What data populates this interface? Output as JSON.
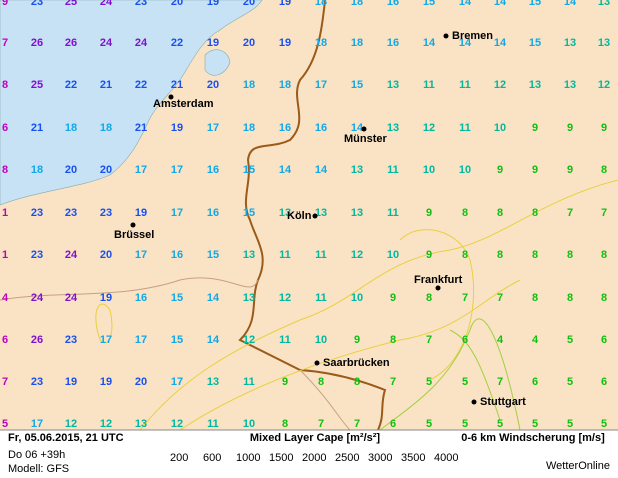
{
  "grid_values": [
    [
      9,
      23,
      25,
      24,
      23,
      20,
      19,
      20,
      19,
      18,
      18,
      16,
      15,
      14,
      14,
      15,
      14,
      13
    ],
    [
      7,
      26,
      26,
      24,
      24,
      22,
      19,
      20,
      19,
      18,
      18,
      16,
      14,
      14,
      14,
      15,
      13,
      13
    ],
    [
      8,
      25,
      22,
      21,
      22,
      21,
      20,
      18,
      18,
      17,
      15,
      13,
      11,
      11,
      12,
      13,
      13,
      12
    ],
    [
      6,
      21,
      18,
      18,
      21,
      19,
      17,
      18,
      16,
      16,
      14,
      13,
      12,
      11,
      10,
      9,
      9,
      9
    ],
    [
      8,
      18,
      20,
      20,
      17,
      17,
      16,
      15,
      14,
      14,
      13,
      11,
      10,
      10,
      9,
      9,
      9,
      8
    ],
    [
      1,
      23,
      23,
      23,
      19,
      17,
      16,
      15,
      13,
      13,
      13,
      11,
      9,
      8,
      8,
      8,
      7,
      7
    ],
    [
      1,
      23,
      24,
      20,
      17,
      16,
      15,
      13,
      11,
      11,
      12,
      10,
      9,
      8,
      8,
      8,
      8,
      8
    ],
    [
      4,
      24,
      24,
      19,
      16,
      15,
      14,
      13,
      12,
      11,
      10,
      9,
      8,
      7,
      7,
      8,
      8,
      8
    ],
    [
      6,
      26,
      23,
      17,
      17,
      15,
      14,
      12,
      11,
      10,
      9,
      8,
      7,
      6,
      4,
      4,
      5,
      6
    ],
    [
      7,
      23,
      19,
      19,
      20,
      17,
      13,
      11,
      9,
      8,
      8,
      7,
      5,
      5,
      7,
      6,
      5,
      6
    ],
    [
      5,
      17,
      12,
      12,
      13,
      12,
      11,
      10,
      8,
      7,
      7,
      6,
      5,
      5,
      5,
      5,
      5,
      5
    ]
  ],
  "value_colors": [
    {
      "max": 9,
      "color": "#10c010"
    },
    {
      "max": 13,
      "color": "#00b8a0"
    },
    {
      "max": 18,
      "color": "#10a8e8"
    },
    {
      "max": 23,
      "color": "#1850f0"
    },
    {
      "max": 30,
      "color": "#8010d0"
    }
  ],
  "edge_color": "#c000c0",
  "cities": [
    "Bremen",
    "Amsterdam",
    "Münster",
    "Köln",
    "Brüssel",
    "Frankfurt",
    "Saarbrücken",
    "Stuttgart"
  ],
  "footer": {
    "datetime": "Fr, 05.06.2015, 21 UTC",
    "run": "Do 06 +39h",
    "model": "Modell: GFS",
    "cape_title": "Mixed Layer Cape [m²/s²]",
    "shear_title": "0-6 km Windscherung [m/s]",
    "brand": "WetterOnline"
  },
  "cape_legend": [
    {
      "value": 200,
      "color": "#30c030"
    },
    {
      "value": 600,
      "color": "#a0d040"
    },
    {
      "value": 1000,
      "color": "#e8d040"
    },
    {
      "value": 1500,
      "color": "#e0a020"
    },
    {
      "value": 2000,
      "color": "#e08020"
    },
    {
      "value": 2500,
      "color": "#e02020"
    },
    {
      "value": 3000,
      "color": "#d020a0"
    },
    {
      "value": 3500,
      "color": "#a020c0"
    },
    {
      "value": 4000,
      "color": "#7010b0"
    }
  ]
}
